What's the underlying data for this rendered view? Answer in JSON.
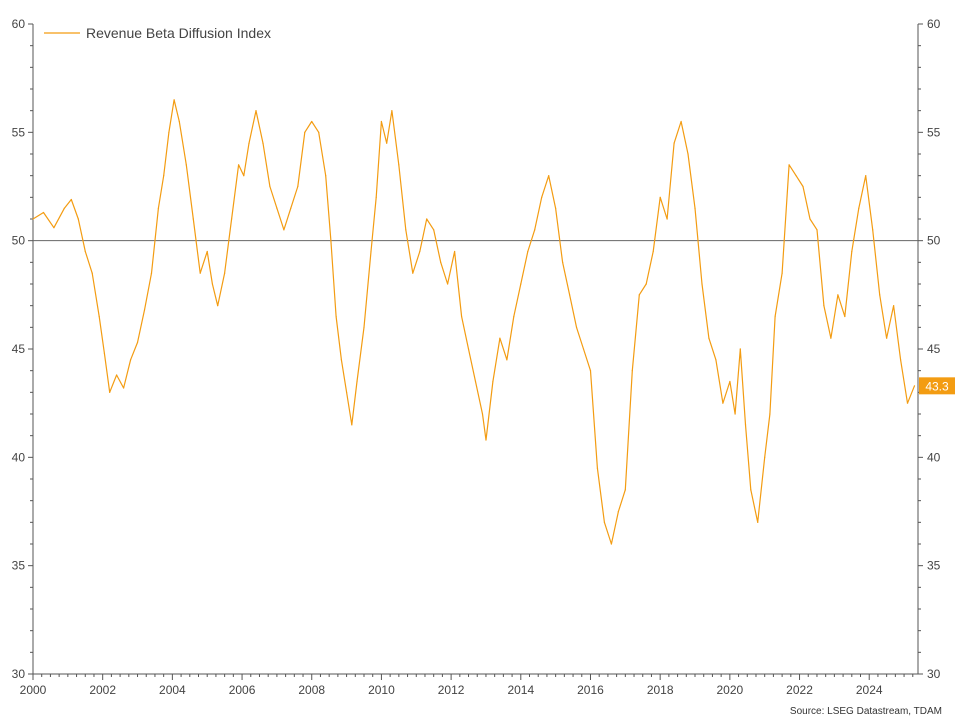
{
  "chart_data": {
    "type": "line",
    "series": [
      {
        "name": "Revenue Beta Diffusion Index",
        "color": "#f39c12",
        "x": [
          2000.0,
          2000.3,
          2000.6,
          2000.9,
          2001.1,
          2001.3,
          2001.5,
          2001.7,
          2001.9,
          2002.05,
          2002.2,
          2002.4,
          2002.6,
          2002.8,
          2003.0,
          2003.2,
          2003.4,
          2003.6,
          2003.75,
          2003.9,
          2004.05,
          2004.2,
          2004.4,
          2004.6,
          2004.8,
          2005.0,
          2005.15,
          2005.3,
          2005.5,
          2005.7,
          2005.9,
          2006.05,
          2006.2,
          2006.4,
          2006.6,
          2006.8,
          2007.0,
          2007.2,
          2007.4,
          2007.6,
          2007.8,
          2008.0,
          2008.2,
          2008.4,
          2008.55,
          2008.7,
          2008.85,
          2009.0,
          2009.15,
          2009.3,
          2009.5,
          2009.7,
          2009.85,
          2010.0,
          2010.15,
          2010.3,
          2010.5,
          2010.7,
          2010.9,
          2011.1,
          2011.3,
          2011.5,
          2011.7,
          2011.9,
          2012.1,
          2012.3,
          2012.5,
          2012.7,
          2012.9,
          2013.0,
          2013.2,
          2013.4,
          2013.6,
          2013.8,
          2014.0,
          2014.2,
          2014.4,
          2014.6,
          2014.8,
          2015.0,
          2015.2,
          2015.4,
          2015.6,
          2015.8,
          2016.0,
          2016.2,
          2016.4,
          2016.6,
          2016.8,
          2017.0,
          2017.2,
          2017.4,
          2017.6,
          2017.8,
          2018.0,
          2018.2,
          2018.4,
          2018.6,
          2018.8,
          2019.0,
          2019.2,
          2019.4,
          2019.6,
          2019.8,
          2020.0,
          2020.15,
          2020.3,
          2020.45,
          2020.6,
          2020.8,
          2021.0,
          2021.15,
          2021.3,
          2021.5,
          2021.7,
          2021.9,
          2022.1,
          2022.3,
          2022.5,
          2022.7,
          2022.9,
          2023.1,
          2023.3,
          2023.5,
          2023.7,
          2023.9,
          2024.1,
          2024.3,
          2024.5,
          2024.7,
          2024.9,
          2025.1,
          2025.3
        ],
        "values": [
          51.0,
          51.3,
          50.6,
          51.5,
          51.9,
          51.0,
          49.5,
          48.5,
          46.5,
          44.8,
          43.0,
          43.8,
          43.2,
          44.5,
          45.3,
          46.8,
          48.5,
          51.5,
          53.0,
          55.0,
          56.5,
          55.5,
          53.5,
          51.0,
          48.5,
          49.5,
          48.0,
          47.0,
          48.5,
          51.0,
          53.5,
          53.0,
          54.5,
          56.0,
          54.5,
          52.5,
          51.5,
          50.5,
          51.5,
          52.5,
          55.0,
          55.5,
          55.0,
          53.0,
          50.0,
          46.5,
          44.5,
          43.0,
          41.5,
          43.5,
          46.0,
          49.5,
          52.0,
          55.5,
          54.5,
          56.0,
          53.5,
          50.5,
          48.5,
          49.5,
          51.0,
          50.5,
          49.0,
          48.0,
          49.5,
          46.5,
          45.0,
          43.5,
          42.0,
          40.8,
          43.5,
          45.5,
          44.5,
          46.5,
          48.0,
          49.5,
          50.5,
          52.0,
          53.0,
          51.5,
          49.0,
          47.5,
          46.0,
          45.0,
          44.0,
          39.5,
          37.0,
          36.0,
          37.5,
          38.5,
          44.0,
          47.5,
          48.0,
          49.5,
          52.0,
          51.0,
          54.5,
          55.5,
          54.0,
          51.5,
          48.0,
          45.5,
          44.5,
          42.5,
          43.5,
          42.0,
          45.0,
          41.5,
          38.5,
          37.0,
          40.0,
          42.0,
          46.5,
          48.5,
          53.5,
          53.0,
          52.5,
          51.0,
          50.5,
          47.0,
          45.5,
          47.5,
          46.5,
          49.5,
          51.5,
          53.0,
          50.5,
          47.5,
          45.5,
          47.0,
          44.5,
          42.5,
          43.3
        ]
      }
    ],
    "xlim": [
      2000,
      2025.4
    ],
    "ylim": [
      30,
      60
    ],
    "x_ticks": [
      2000,
      2002,
      2004,
      2006,
      2008,
      2010,
      2012,
      2014,
      2016,
      2018,
      2020,
      2022,
      2024
    ],
    "x_tick_labels": [
      "2000",
      "2002",
      "2004",
      "2006",
      "2008",
      "2010",
      "2012",
      "2014",
      "2016",
      "2018",
      "2020",
      "2022",
      "2024"
    ],
    "y_ticks": [
      30,
      35,
      40,
      45,
      50,
      55,
      60
    ],
    "y_tick_labels": [
      "30",
      "35",
      "40",
      "45",
      "50",
      "55",
      "60"
    ],
    "reference_line": 50,
    "reference_line_color": "#666666",
    "last_value_label": "43.3",
    "legend": {
      "position": "top-left",
      "entries": [
        "Revenue Beta Diffusion Index"
      ]
    },
    "source": "Source: LSEG Datastream, TDAM",
    "grid": false
  }
}
